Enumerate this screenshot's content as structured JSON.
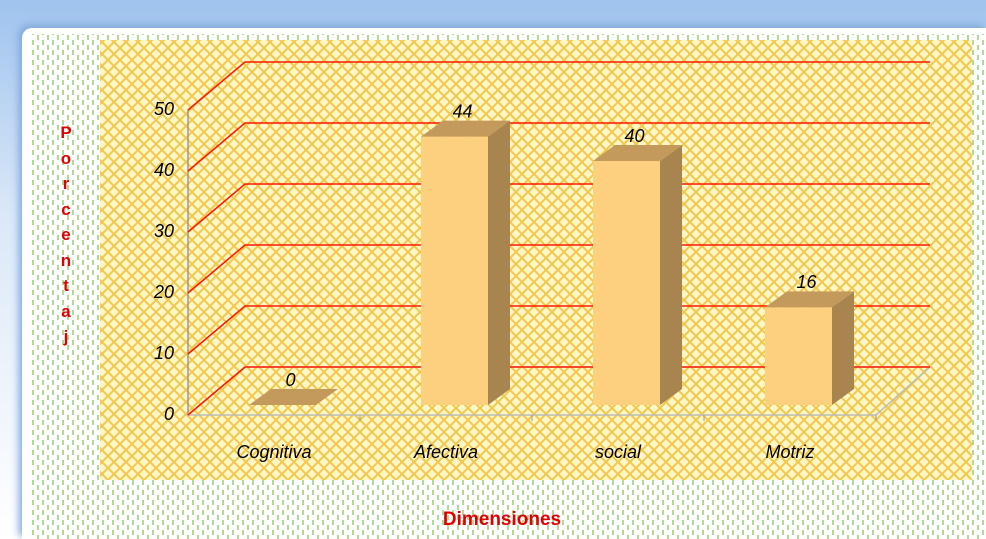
{
  "chart_data": {
    "type": "bar3d",
    "categories": [
      "Cognitiva",
      "Afectiva",
      "social",
      "Motriz"
    ],
    "values": [
      0,
      44,
      40,
      16
    ],
    "ylim": [
      0,
      50
    ],
    "yticks": [
      0,
      10,
      20,
      30,
      40,
      50
    ],
    "grid": true,
    "grid_color": "#ff1a00",
    "color": "#fdd080",
    "x_label": "Dimensiones",
    "y_label": "Porcentaj"
  }
}
